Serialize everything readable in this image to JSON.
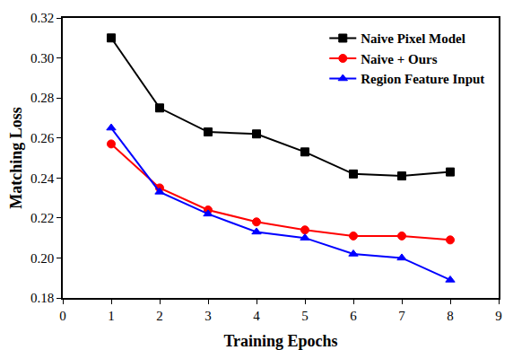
{
  "chart_data": {
    "type": "line",
    "x_label": "Training Epochs",
    "y_label": "Matching Loss",
    "x": [
      1,
      2,
      3,
      4,
      5,
      6,
      7,
      8
    ],
    "series": [
      {
        "name": "Naive Pixel Model",
        "color": "#000000",
        "marker": "square",
        "values": [
          0.31,
          0.275,
          0.263,
          0.262,
          0.253,
          0.242,
          0.241,
          0.243
        ]
      },
      {
        "name": "Naive + Ours",
        "color": "#ff0000",
        "marker": "circle",
        "values": [
          0.257,
          0.235,
          0.224,
          0.218,
          0.214,
          0.211,
          0.211,
          0.209
        ]
      },
      {
        "name": "Region Feature Input",
        "color": "#0000ff",
        "marker": "triangle-up",
        "values": [
          0.265,
          0.233,
          0.222,
          0.213,
          0.21,
          0.202,
          0.2,
          0.189
        ]
      }
    ],
    "xlim": [
      0,
      9
    ],
    "xticks": [
      0,
      1,
      2,
      3,
      4,
      5,
      6,
      7,
      8,
      9
    ],
    "ylim": [
      0.18,
      0.32
    ],
    "yticks": [
      0.18,
      {
        "value": 0.2,
        "label": "0.20"
      },
      0.22,
      0.24,
      0.26,
      0.28,
      {
        "value": 0.3,
        "label": "0.30"
      },
      0.32
    ],
    "grid": false,
    "legend": "top-right"
  }
}
